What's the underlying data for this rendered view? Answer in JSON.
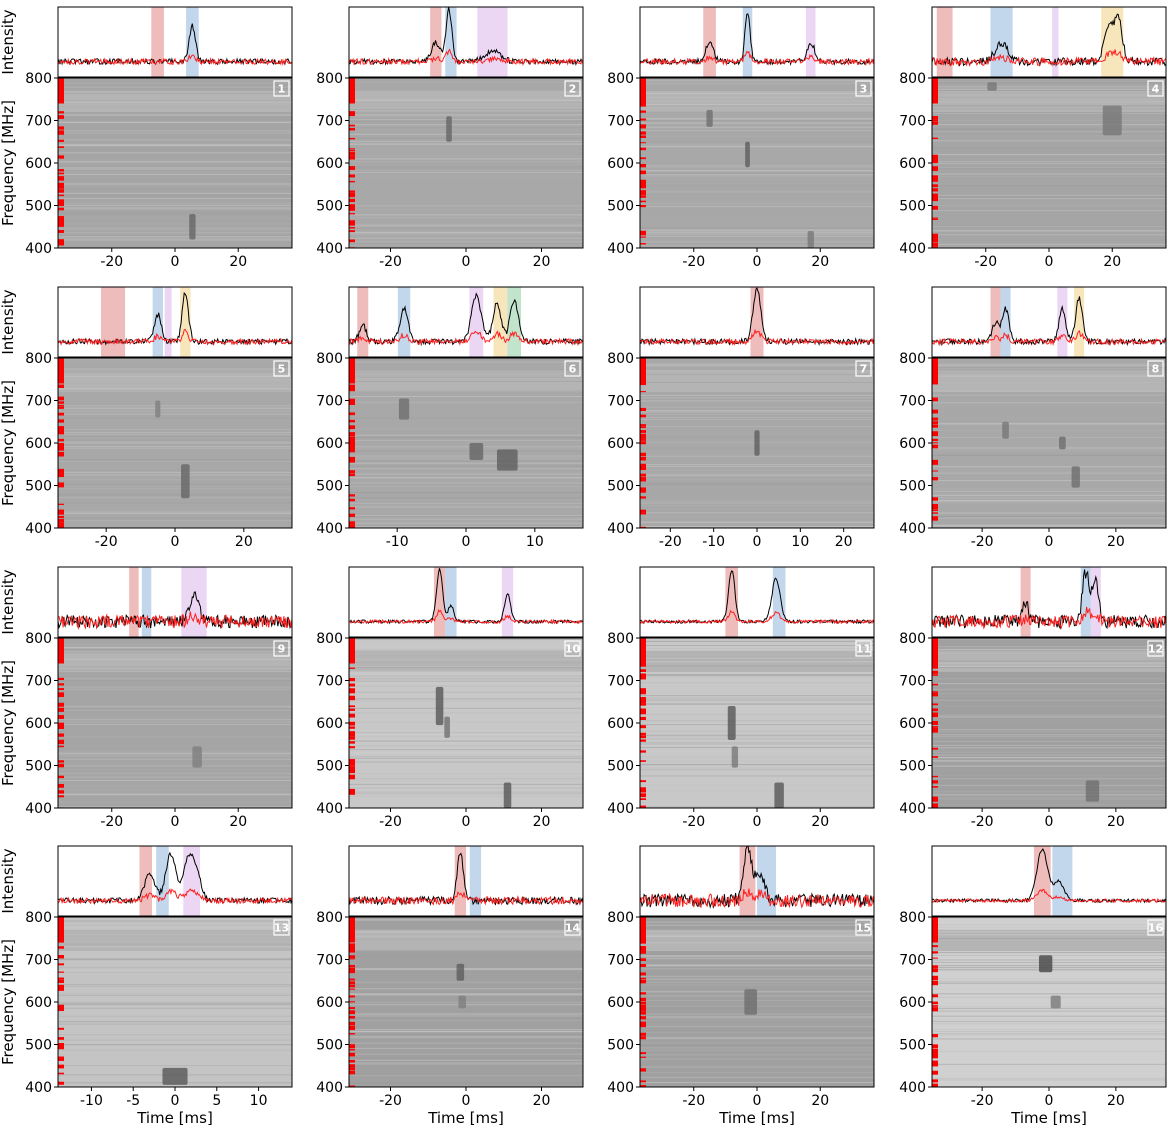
{
  "figure": {
    "y_label_top": "Intensity",
    "y_label_bottom": "Frequency [MHz]",
    "x_label": "Time [ms]"
  },
  "legend_colors": {
    "profile_main": "#000000",
    "profile_off": "#ff2020",
    "highlight_red": "#e8a0a0",
    "highlight_blue": "#a8c4e4",
    "highlight_violet": "#e2c4ee",
    "highlight_orange": "#f4dca0",
    "highlight_green": "#a8d8b8",
    "flag_mask": "#ff0000"
  },
  "chart_data": [
    {
      "type": "line",
      "label": "1",
      "xlim": [
        -37,
        37
      ],
      "xticks": [
        -20,
        0,
        20
      ],
      "ylim": [
        400,
        800
      ],
      "yticks": [
        400,
        500,
        600,
        700,
        800
      ],
      "components": [
        {
          "center": -5.5,
          "width": 4,
          "color": "red"
        },
        {
          "center": 5.5,
          "width": 4,
          "color": "blue"
        }
      ],
      "peaks": [
        {
          "t": 5.5,
          "amp": 0.65,
          "w": 1.0
        }
      ],
      "noise": 0.05,
      "spectrogram": {
        "bg": "#a5a5a5",
        "patches": [
          {
            "t": 5.5,
            "f": 450,
            "dt": 2.0,
            "df": 60,
            "dark": 0.45
          }
        ]
      }
    },
    {
      "type": "line",
      "label": "2",
      "xlim": [
        -31,
        31
      ],
      "xticks": [
        -20,
        0,
        20
      ],
      "ylim": [
        400,
        800
      ],
      "yticks": [
        400,
        500,
        600,
        700,
        800
      ],
      "components": [
        {
          "center": -8,
          "width": 3,
          "color": "red"
        },
        {
          "center": -4,
          "width": 3,
          "color": "blue"
        },
        {
          "center": 7,
          "width": 8,
          "color": "violet"
        }
      ],
      "peaks": [
        {
          "t": -8,
          "amp": 0.35,
          "w": 1.2
        },
        {
          "t": -4.5,
          "amp": 0.95,
          "w": 0.8
        },
        {
          "t": 7,
          "amp": 0.2,
          "w": 2
        }
      ],
      "noise": 0.05,
      "spectrogram": {
        "bg": "#a8a8a8",
        "patches": [
          {
            "t": -4.5,
            "f": 680,
            "dt": 1.5,
            "df": 60,
            "dark": 0.45
          }
        ]
      }
    },
    {
      "type": "line",
      "label": "3",
      "xlim": [
        -37,
        37
      ],
      "xticks": [
        -20,
        0,
        20
      ],
      "ylim": [
        400,
        800
      ],
      "yticks": [
        400,
        500,
        600,
        700,
        800
      ],
      "components": [
        {
          "center": -15,
          "width": 4,
          "color": "red"
        },
        {
          "center": -3,
          "width": 3,
          "color": "blue"
        },
        {
          "center": 17,
          "width": 3,
          "color": "violet"
        }
      ],
      "peaks": [
        {
          "t": -15,
          "amp": 0.35,
          "w": 1.2
        },
        {
          "t": -3,
          "amp": 0.9,
          "w": 0.8
        },
        {
          "t": 17,
          "amp": 0.35,
          "w": 1.2
        }
      ],
      "noise": 0.05,
      "spectrogram": {
        "bg": "#a8a8a8",
        "patches": [
          {
            "t": -15,
            "f": 705,
            "dt": 2,
            "df": 40,
            "dark": 0.4
          },
          {
            "t": -3,
            "f": 620,
            "dt": 1.5,
            "df": 60,
            "dark": 0.5
          },
          {
            "t": 17,
            "f": 420,
            "dt": 2,
            "df": 40,
            "dark": 0.35
          }
        ]
      }
    },
    {
      "type": "line",
      "label": "4",
      "xlim": [
        -37,
        37
      ],
      "xticks": [
        -20,
        0,
        20
      ],
      "ylim": [
        400,
        800
      ],
      "yticks": [
        400,
        500,
        600,
        700,
        800
      ],
      "components": [
        {
          "center": -33,
          "width": 5,
          "color": "red"
        },
        {
          "center": -15,
          "width": 7,
          "color": "blue"
        },
        {
          "center": 2,
          "width": 2,
          "color": "violet"
        },
        {
          "center": 20,
          "width": 7,
          "color": "orange"
        }
      ],
      "peaks": [
        {
          "t": -15,
          "amp": 0.35,
          "w": 2
        },
        {
          "t": 19,
          "amp": 0.6,
          "w": 1.5
        },
        {
          "t": 22,
          "amp": 0.75,
          "w": 1.2
        }
      ],
      "noise": 0.07,
      "spectrogram": {
        "bg": "#a5a5a5",
        "patches": [
          {
            "t": 20,
            "f": 700,
            "dt": 6,
            "df": 70,
            "dark": 0.35
          },
          {
            "t": -18,
            "f": 780,
            "dt": 3,
            "df": 20,
            "dark": 0.35
          }
        ]
      }
    },
    {
      "type": "line",
      "label": "5",
      "xlim": [
        -34,
        34
      ],
      "xticks": [
        -20,
        0,
        20
      ],
      "ylim": [
        400,
        800
      ],
      "yticks": [
        400,
        500,
        600,
        700,
        800
      ],
      "components": [
        {
          "center": -18,
          "width": 7,
          "color": "red"
        },
        {
          "center": -5,
          "width": 3,
          "color": "blue"
        },
        {
          "center": -2,
          "width": 2,
          "color": "violet"
        },
        {
          "center": 3,
          "width": 3,
          "color": "orange"
        }
      ],
      "peaks": [
        {
          "t": -5,
          "amp": 0.5,
          "w": 1.0
        },
        {
          "t": 3,
          "amp": 0.9,
          "w": 0.9
        }
      ],
      "noise": 0.05,
      "spectrogram": {
        "bg": "#a8a8a8",
        "patches": [
          {
            "t": 3,
            "f": 510,
            "dt": 2.5,
            "df": 80,
            "dark": 0.45
          },
          {
            "t": -5,
            "f": 680,
            "dt": 1.5,
            "df": 40,
            "dark": 0.3
          }
        ]
      }
    },
    {
      "type": "line",
      "label": "6",
      "xlim": [
        -17,
        17
      ],
      "xticks": [
        -10,
        0,
        10
      ],
      "ylim": [
        400,
        800
      ],
      "yticks": [
        400,
        500,
        600,
        700,
        800
      ],
      "components": [
        {
          "center": -15,
          "width": 1.6,
          "color": "red"
        },
        {
          "center": -9,
          "width": 1.8,
          "color": "blue"
        },
        {
          "center": 1.5,
          "width": 2,
          "color": "violet"
        },
        {
          "center": 5,
          "width": 2,
          "color": "orange"
        },
        {
          "center": 7,
          "width": 2,
          "color": "green"
        }
      ],
      "peaks": [
        {
          "t": -15,
          "amp": 0.3,
          "w": 0.5
        },
        {
          "t": -9,
          "amp": 0.6,
          "w": 0.6
        },
        {
          "t": 1.5,
          "amp": 0.85,
          "w": 0.7
        },
        {
          "t": 4.5,
          "amp": 0.7,
          "w": 0.6
        },
        {
          "t": 7,
          "amp": 0.75,
          "w": 0.6
        }
      ],
      "noise": 0.05,
      "spectrogram": {
        "bg": "#a8a8a8",
        "patches": [
          {
            "t": -9,
            "f": 680,
            "dt": 1.5,
            "df": 50,
            "dark": 0.4
          },
          {
            "t": 1.5,
            "f": 580,
            "dt": 2,
            "df": 40,
            "dark": 0.45
          },
          {
            "t": 6,
            "f": 560,
            "dt": 3,
            "df": 50,
            "dark": 0.5
          }
        ]
      }
    },
    {
      "type": "line",
      "label": "7",
      "xlim": [
        -27,
        27
      ],
      "xticks": [
        -20,
        -10,
        0,
        10,
        20
      ],
      "ylim": [
        400,
        800
      ],
      "yticks": [
        400,
        500,
        600,
        700,
        800
      ],
      "components": [
        {
          "center": 0,
          "width": 3,
          "color": "red"
        }
      ],
      "peaks": [
        {
          "t": 0,
          "amp": 0.95,
          "w": 0.9
        }
      ],
      "noise": 0.05,
      "spectrogram": {
        "bg": "#a8a8a8",
        "patches": [
          {
            "t": 0,
            "f": 600,
            "dt": 1.2,
            "df": 60,
            "dark": 0.5
          }
        ]
      }
    },
    {
      "type": "line",
      "label": "8",
      "xlim": [
        -35,
        35
      ],
      "xticks": [
        -20,
        0,
        20
      ],
      "ylim": [
        400,
        800
      ],
      "yticks": [
        400,
        500,
        600,
        700,
        800
      ],
      "components": [
        {
          "center": -16,
          "width": 3,
          "color": "red"
        },
        {
          "center": -13,
          "width": 3,
          "color": "blue"
        },
        {
          "center": 4,
          "width": 3,
          "color": "violet"
        },
        {
          "center": 9,
          "width": 3,
          "color": "orange"
        }
      ],
      "peaks": [
        {
          "t": -16,
          "amp": 0.35,
          "w": 1.0
        },
        {
          "t": -13,
          "amp": 0.6,
          "w": 1.0
        },
        {
          "t": 4,
          "amp": 0.6,
          "w": 1.0
        },
        {
          "t": 9,
          "amp": 0.8,
          "w": 1.0
        }
      ],
      "noise": 0.05,
      "spectrogram": {
        "bg": "#a8a8a8",
        "patches": [
          {
            "t": -13,
            "f": 630,
            "dt": 2,
            "df": 40,
            "dark": 0.35
          },
          {
            "t": 4,
            "f": 600,
            "dt": 2,
            "df": 30,
            "dark": 0.4
          },
          {
            "t": 8,
            "f": 520,
            "dt": 2.5,
            "df": 50,
            "dark": 0.4
          }
        ]
      }
    },
    {
      "type": "line",
      "label": "9",
      "xlim": [
        -37,
        37
      ],
      "xticks": [
        -20,
        0,
        20
      ],
      "ylim": [
        400,
        800
      ],
      "yticks": [
        400,
        500,
        600,
        700,
        800
      ],
      "components": [
        {
          "center": -13,
          "width": 3,
          "color": "red"
        },
        {
          "center": -9,
          "width": 3,
          "color": "blue"
        },
        {
          "center": 6,
          "width": 8,
          "color": "violet"
        }
      ],
      "peaks": [
        {
          "t": 6,
          "amp": 0.45,
          "w": 1.5
        }
      ],
      "noise": 0.12,
      "spectrogram": {
        "bg": "#a5a5a5",
        "patches": [
          {
            "t": 7,
            "f": 520,
            "dt": 3,
            "df": 50,
            "dark": 0.3
          }
        ]
      }
    },
    {
      "type": "line",
      "label": "10",
      "xlim": [
        -31,
        31
      ],
      "xticks": [
        -20,
        0,
        20
      ],
      "ylim": [
        400,
        800
      ],
      "yticks": [
        400,
        500,
        600,
        700,
        800
      ],
      "components": [
        {
          "center": -7,
          "width": 3,
          "color": "red"
        },
        {
          "center": -4,
          "width": 3,
          "color": "blue"
        },
        {
          "center": 11,
          "width": 3,
          "color": "violet"
        }
      ],
      "peaks": [
        {
          "t": -7,
          "amp": 0.95,
          "w": 0.8
        },
        {
          "t": -4,
          "amp": 0.3,
          "w": 0.8
        },
        {
          "t": 11,
          "amp": 0.5,
          "w": 0.8
        }
      ],
      "noise": 0.03,
      "spectrogram": {
        "bg": "#c8c8c8",
        "patches": [
          {
            "t": -7,
            "f": 640,
            "dt": 2,
            "df": 90,
            "dark": 0.55
          },
          {
            "t": -5,
            "f": 590,
            "dt": 1.5,
            "df": 50,
            "dark": 0.4
          },
          {
            "t": 11,
            "f": 430,
            "dt": 2,
            "df": 60,
            "dark": 0.55
          }
        ]
      }
    },
    {
      "type": "line",
      "label": "11",
      "xlim": [
        -37,
        37
      ],
      "xticks": [
        -20,
        0,
        20
      ],
      "ylim": [
        400,
        800
      ],
      "yticks": [
        400,
        500,
        600,
        700,
        800
      ],
      "components": [
        {
          "center": -8,
          "width": 4,
          "color": "red"
        },
        {
          "center": 7,
          "width": 4,
          "color": "blue"
        }
      ],
      "peaks": [
        {
          "t": -8,
          "amp": 0.95,
          "w": 1.0
        },
        {
          "t": 6,
          "amp": 0.8,
          "w": 1.3
        }
      ],
      "noise": 0.03,
      "spectrogram": {
        "bg": "#c8c8c8",
        "patches": [
          {
            "t": -8,
            "f": 600,
            "dt": 2.5,
            "df": 80,
            "dark": 0.55
          },
          {
            "t": -7,
            "f": 520,
            "dt": 2,
            "df": 50,
            "dark": 0.35
          },
          {
            "t": 7,
            "f": 430,
            "dt": 3,
            "df": 60,
            "dark": 0.55
          }
        ]
      }
    },
    {
      "type": "line",
      "label": "12",
      "xlim": [
        -35,
        35
      ],
      "xticks": [
        -20,
        0,
        20
      ],
      "ylim": [
        400,
        800
      ],
      "yticks": [
        400,
        500,
        600,
        700,
        800
      ],
      "components": [
        {
          "center": -7,
          "width": 3,
          "color": "red"
        },
        {
          "center": 11,
          "width": 3,
          "color": "blue"
        },
        {
          "center": 14,
          "width": 3,
          "color": "violet"
        }
      ],
      "peaks": [
        {
          "t": -7,
          "amp": 0.35,
          "w": 1.0
        },
        {
          "t": 11,
          "amp": 0.9,
          "w": 1.0
        },
        {
          "t": 14,
          "amp": 0.75,
          "w": 1.0
        }
      ],
      "noise": 0.12,
      "spectrogram": {
        "bg": "#a0a0a0",
        "patches": [
          {
            "t": 13,
            "f": 440,
            "dt": 4,
            "df": 50,
            "dark": 0.4
          }
        ]
      }
    },
    {
      "type": "line",
      "label": "13",
      "xlim": [
        -14,
        14
      ],
      "xticks": [
        -10,
        -5,
        0,
        5,
        10
      ],
      "ylim": [
        400,
        800
      ],
      "yticks": [
        400,
        500,
        600,
        700,
        800
      ],
      "components": [
        {
          "center": -3.5,
          "width": 1.5,
          "color": "red"
        },
        {
          "center": -1.5,
          "width": 1.5,
          "color": "blue"
        },
        {
          "center": 2,
          "width": 2,
          "color": "violet"
        }
      ],
      "peaks": [
        {
          "t": -3,
          "amp": 0.5,
          "w": 0.6
        },
        {
          "t": -0.5,
          "amp": 0.85,
          "w": 0.6
        },
        {
          "t": 1.5,
          "amp": 0.65,
          "w": 0.6
        },
        {
          "t": 2.5,
          "amp": 0.5,
          "w": 0.6
        }
      ],
      "noise": 0.05,
      "spectrogram": {
        "bg": "#c4c4c4",
        "patches": [
          {
            "t": 0,
            "f": 425,
            "dt": 3,
            "df": 40,
            "dark": 0.55
          }
        ]
      }
    },
    {
      "type": "line",
      "label": "14",
      "xlim": [
        -31,
        31
      ],
      "xticks": [
        -20,
        0,
        20
      ],
      "ylim": [
        400,
        800
      ],
      "yticks": [
        400,
        500,
        600,
        700,
        800
      ],
      "components": [
        {
          "center": -1.5,
          "width": 3,
          "color": "red"
        },
        {
          "center": 2.5,
          "width": 3,
          "color": "blue"
        }
      ],
      "peaks": [
        {
          "t": -1.5,
          "amp": 0.9,
          "w": 0.8
        }
      ],
      "noise": 0.07,
      "spectrogram": {
        "bg": "#a0a0a0",
        "patches": [
          {
            "t": -1.5,
            "f": 670,
            "dt": 2,
            "df": 40,
            "dark": 0.5
          },
          {
            "t": -1,
            "f": 600,
            "dt": 2,
            "df": 30,
            "dark": 0.3
          }
        ]
      }
    },
    {
      "type": "line",
      "label": "15",
      "xlim": [
        -37,
        37
      ],
      "xticks": [
        -20,
        0,
        20
      ],
      "ylim": [
        400,
        800
      ],
      "yticks": [
        400,
        500,
        600,
        700,
        800
      ],
      "components": [
        {
          "center": -3,
          "width": 5,
          "color": "red"
        },
        {
          "center": 3,
          "width": 6,
          "color": "blue"
        }
      ],
      "peaks": [
        {
          "t": -3,
          "amp": 0.9,
          "w": 1.4
        },
        {
          "t": 1,
          "amp": 0.45,
          "w": 1.5
        }
      ],
      "noise": 0.12,
      "spectrogram": {
        "bg": "#a0a0a0",
        "patches": [
          {
            "t": -2,
            "f": 600,
            "dt": 4,
            "df": 60,
            "dark": 0.4
          }
        ]
      }
    },
    {
      "type": "line",
      "label": "16",
      "xlim": [
        -35,
        35
      ],
      "xticks": [
        -20,
        0,
        20
      ],
      "ylim": [
        400,
        800
      ],
      "yticks": [
        400,
        500,
        600,
        700,
        800
      ],
      "components": [
        {
          "center": -2,
          "width": 5,
          "color": "red"
        },
        {
          "center": 4,
          "width": 6,
          "color": "blue"
        }
      ],
      "peaks": [
        {
          "t": -2,
          "amp": 0.95,
          "w": 1.6
        },
        {
          "t": 3,
          "amp": 0.35,
          "w": 1.5
        }
      ],
      "noise": 0.03,
      "spectrogram": {
        "bg": "#d0d0d0",
        "patches": [
          {
            "t": -1,
            "f": 690,
            "dt": 4,
            "df": 40,
            "dark": 0.65
          },
          {
            "t": 2,
            "f": 600,
            "dt": 3,
            "df": 30,
            "dark": 0.35
          }
        ]
      }
    }
  ]
}
